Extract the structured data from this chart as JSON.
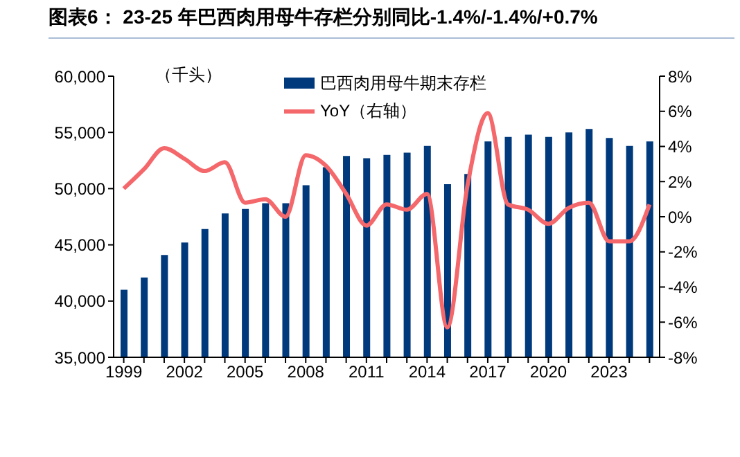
{
  "chart_data": {
    "type": "bar",
    "title": "图表6：  23-25 年巴西肉用母牛存栏分别同比-1.4%/-1.4%/+0.7%",
    "ylabel": "（千头）",
    "categories": [
      "1999",
      null,
      null,
      "2002",
      null,
      null,
      "2005",
      null,
      null,
      "2008",
      null,
      null,
      "2011",
      null,
      null,
      "2014",
      null,
      null,
      "2017",
      null,
      null,
      "2020",
      null,
      null,
      "2023",
      null,
      null
    ],
    "series": [
      {
        "name": "巴西肉用母牛期末存栏",
        "color": "#003a7d",
        "values": [
          41000,
          42100,
          44100,
          45200,
          46400,
          47800,
          48200,
          48700,
          48700,
          50300,
          51900,
          52900,
          52700,
          53000,
          53200,
          53800,
          50400,
          51300,
          54200,
          54600,
          54800,
          54600,
          55000,
          55300,
          54500,
          53800,
          54200
        ]
      },
      {
        "name": "YoY（右轴）",
        "type": "line",
        "axis": "y2",
        "color": "#f4676a",
        "values": [
          1.6,
          2.7,
          3.9,
          3.3,
          2.6,
          3.1,
          0.8,
          1.0,
          0.0,
          3.5,
          2.9,
          1.3,
          -0.5,
          0.7,
          0.4,
          1.3,
          -6.3,
          1.8,
          5.9,
          0.7,
          0.4,
          -0.4,
          0.5,
          0.8,
          -1.4,
          -1.4,
          0.7
        ]
      }
    ],
    "ylim": [
      35000,
      60000
    ],
    "yticks": [
      {
        "value": 35000,
        "label": "35,000"
      },
      {
        "value": 40000,
        "label": "40,000"
      },
      {
        "value": 45000,
        "label": "45,000"
      },
      {
        "value": 50000,
        "label": "50,000"
      },
      {
        "value": 55000,
        "label": "55,000"
      },
      {
        "value": 60000,
        "label": "60,000"
      }
    ],
    "y2lim": [
      -8,
      8
    ],
    "y2ticks": [
      {
        "value": -8,
        "label": "-8%"
      },
      {
        "value": -6,
        "label": "-6%"
      },
      {
        "value": -4,
        "label": "-4%"
      },
      {
        "value": -2,
        "label": "-2%"
      },
      {
        "value": 0,
        "label": "0%"
      },
      {
        "value": 2,
        "label": "2%"
      },
      {
        "value": 4,
        "label": "4%"
      },
      {
        "value": 6,
        "label": "6%"
      },
      {
        "value": 8,
        "label": "8%"
      }
    ],
    "legend": "top right",
    "grid": false,
    "marker": "none",
    "line_style": "solid"
  }
}
